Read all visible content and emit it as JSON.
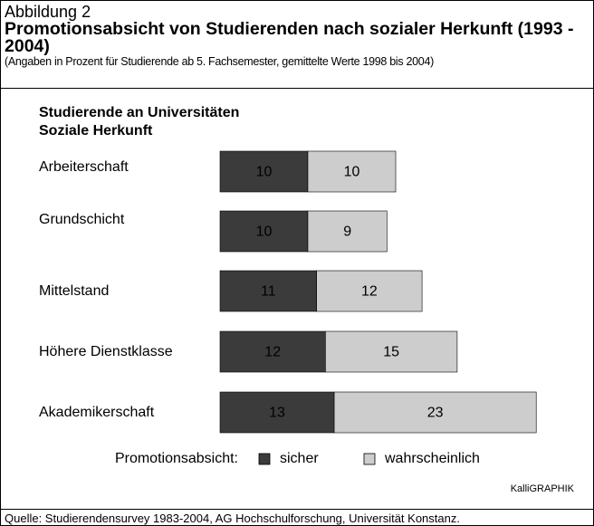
{
  "header": {
    "label": "Abbildung 2",
    "title": "Promotionsabsicht von Studierenden nach sozialer Herkunft (1993 - 2004)",
    "subtitle": "(Angaben in Prozent für Studierende ab 5. Fachsemester, gemittelte Werte 1998 bis 2004)"
  },
  "chart_data": {
    "type": "bar",
    "orientation": "horizontal",
    "stacked": true,
    "title": "Studierende an Universitäten",
    "subtitle": "Soziale Herkunft",
    "categories": [
      "Arbeiterschaft",
      "Grundschicht",
      "Mittelstand",
      "Höhere Dienstklasse",
      "Akademikerschaft"
    ],
    "series": [
      {
        "name": "sicher",
        "color": "#3b3b3b",
        "label_color": "#ffffff",
        "values": [
          10,
          10,
          11,
          12,
          13
        ]
      },
      {
        "name": "wahrscheinlich",
        "color": "#cdcdcd",
        "label_color": "#000000",
        "values": [
          10,
          9,
          12,
          15,
          23
        ]
      }
    ],
    "legend_title": "Promotionsabsicht:"
  },
  "credit": "KalliGRAPHIK",
  "source": "Quelle: Studierendensurvey 1983-2004, AG Hochschulforschung, Universität Konstanz."
}
